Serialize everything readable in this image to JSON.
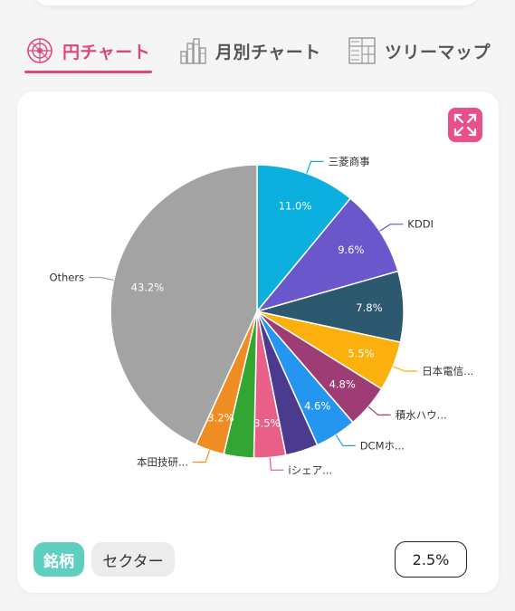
{
  "tabs": [
    {
      "label": "円チャート",
      "icon": "pie-chart-icon",
      "active": true
    },
    {
      "label": "月別チャート",
      "icon": "bar-chart-icon",
      "active": false
    },
    {
      "label": "ツリーマップ",
      "icon": "treemap-icon",
      "active": false
    }
  ],
  "colors": {
    "accent": "#e0457b",
    "expand": "#e8508c",
    "toggle_active": "#5fcfbf"
  },
  "chart": {
    "expand_icon": "expand-icon"
  },
  "toggles": {
    "brand": "銘柄",
    "sector": "セクター"
  },
  "threshold": "2.5%",
  "chart_data": {
    "type": "pie",
    "slices": [
      {
        "label": "三菱商事",
        "value": 11.0,
        "value_label": "11.0%",
        "color": "#0cb0de"
      },
      {
        "label": "KDDI",
        "value": 9.6,
        "value_label": "9.6%",
        "color": "#6a57cc"
      },
      {
        "label": "",
        "value": 7.8,
        "value_label": "7.8%",
        "color": "#2c5870"
      },
      {
        "label": "日本電信...",
        "value": 5.5,
        "value_label": "5.5%",
        "color": "#fbb00e"
      },
      {
        "label": "積水ハウ...",
        "value": 4.8,
        "value_label": "4.8%",
        "color": "#9e3d75"
      },
      {
        "label": "DCMホ...",
        "value": 4.6,
        "value_label": "4.6%",
        "color": "#2596f0"
      },
      {
        "label": "",
        "value": 3.6,
        "value_label": "",
        "color": "#4b3b8f"
      },
      {
        "label": "iシェア...",
        "value": 3.5,
        "value_label": "3.5%",
        "color": "#e85f88"
      },
      {
        "label": "",
        "value": 3.3,
        "value_label": "",
        "color": "#32a532"
      },
      {
        "label": "本田技研...",
        "value": 3.2,
        "value_label": "3.2%",
        "color": "#ef8d22"
      },
      {
        "label": "Others",
        "value": 43.2,
        "value_label": "43.2%",
        "color": "#a3a3a3"
      }
    ]
  }
}
